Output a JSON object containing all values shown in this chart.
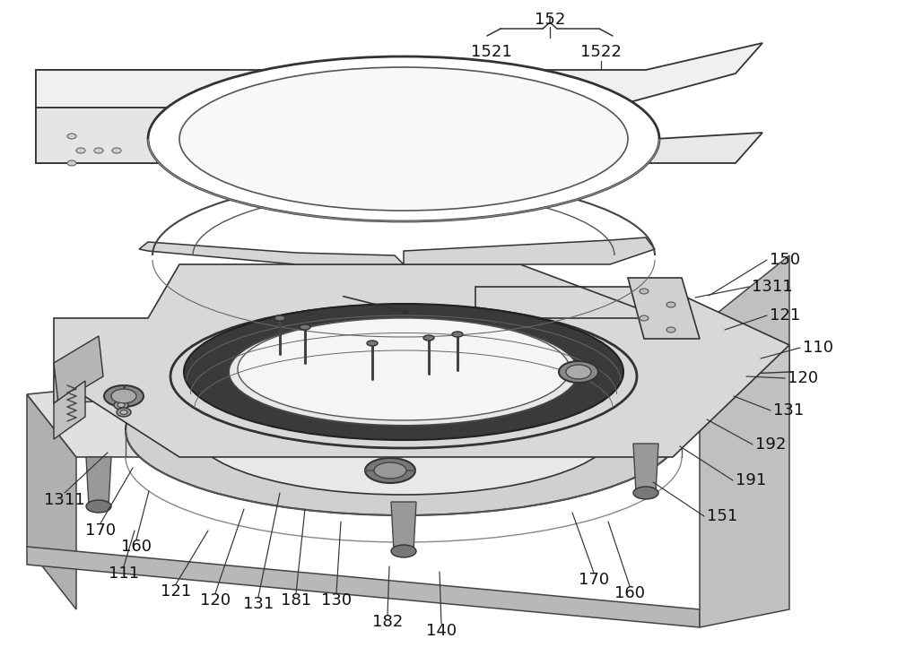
{
  "background_color": "#ffffff",
  "label_font_size": 13,
  "line_color": "#333333",
  "text_color": "#111111",
  "labels_top": {
    "152": [
      615,
      22
    ],
    "1521": [
      548,
      58
    ],
    "1522": [
      672,
      58
    ]
  },
  "labels_right": [
    [
      "150",
      858,
      290,
      790,
      330
    ],
    [
      "1311",
      838,
      320,
      775,
      332
    ],
    [
      "121",
      858,
      352,
      808,
      368
    ],
    [
      "110",
      895,
      388,
      848,
      400
    ],
    [
      "120",
      878,
      422,
      832,
      420
    ],
    [
      "131",
      862,
      458,
      818,
      442
    ],
    [
      "192",
      842,
      496,
      788,
      468
    ],
    [
      "191",
      820,
      536,
      758,
      498
    ],
    [
      "151",
      788,
      576,
      728,
      538
    ]
  ],
  "labels_bot": [
    [
      "1311",
      72,
      558,
      120,
      505
    ],
    [
      "170",
      112,
      592,
      148,
      522
    ],
    [
      "160",
      152,
      610,
      166,
      548
    ],
    [
      "111",
      138,
      640,
      150,
      592
    ],
    [
      "121",
      196,
      660,
      232,
      592
    ],
    [
      "120",
      240,
      670,
      272,
      568
    ],
    [
      "131",
      288,
      674,
      312,
      550
    ],
    [
      "181",
      330,
      670,
      340,
      568
    ],
    [
      "130",
      375,
      670,
      380,
      582
    ],
    [
      "182",
      432,
      694,
      434,
      632
    ],
    [
      "140",
      492,
      704,
      490,
      638
    ],
    [
      "170",
      662,
      647,
      638,
      572
    ],
    [
      "160",
      702,
      662,
      678,
      582
    ]
  ]
}
